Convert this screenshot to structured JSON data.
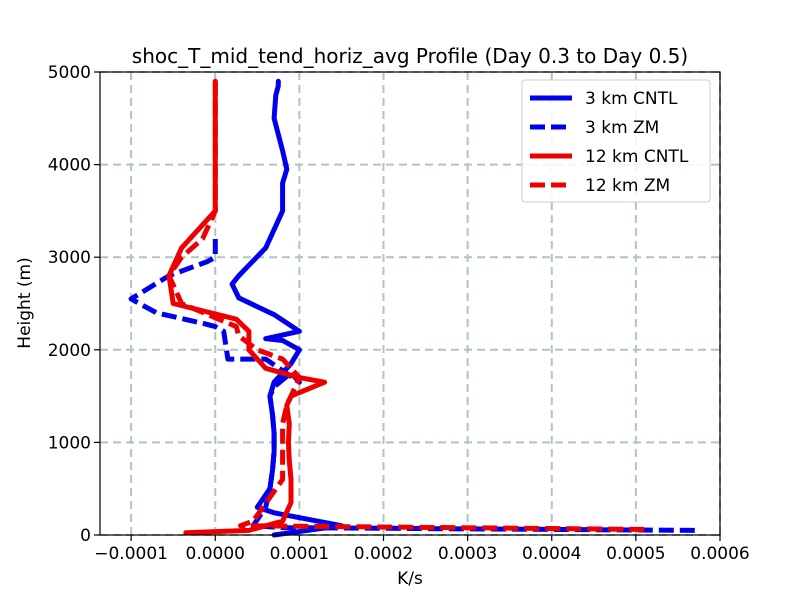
{
  "chart_data": {
    "type": "line",
    "title": "shoc_T_mid_tend_horiz_avg Profile (Day 0.3 to Day 0.5)",
    "xlabel": "K/s",
    "ylabel": "Height (m)",
    "xlim": [
      -0.000137,
      0.0006
    ],
    "ylim": [
      0,
      5000
    ],
    "grid": true,
    "legend_position": "top-right",
    "x_ticks": [
      -0.0001,
      0,
      0.0001,
      0.0002,
      0.0003,
      0.0004,
      0.0005,
      0.0006
    ],
    "x_tick_labels": [
      "−0.0001",
      "0.0000",
      "0.0001",
      "0.0002",
      "0.0003",
      "0.0004",
      "0.0005",
      "0.0006"
    ],
    "y_ticks": [
      0,
      1000,
      2000,
      3000,
      4000,
      5000
    ],
    "y_tick_labels": [
      "0",
      "1000",
      "2000",
      "3000",
      "4000",
      "5000"
    ],
    "series": [
      {
        "name": "3 km CNTL",
        "color": "#0000ee",
        "dash": "solid",
        "x": [
          7e-05,
          0.00015,
          7e-05,
          5e-05,
          6.5e-05,
          6.8e-05,
          7e-05,
          7e-05,
          6.8e-05,
          6.5e-05,
          7e-05,
          9e-05,
          0.0001,
          8e-05,
          6e-05,
          0.0001,
          7e-05,
          2.8e-05,
          2e-05,
          2.8e-05,
          6e-05,
          8e-05,
          8e-05,
          8.5e-05,
          8e-05,
          7e-05,
          7.2e-05,
          7.5e-05,
          7.5e-05
        ],
        "y": [
          0,
          100,
          240,
          300,
          500,
          700,
          900,
          1100,
          1300,
          1500,
          1650,
          1850,
          2000,
          2100,
          2120,
          2200,
          2380,
          2560,
          2710,
          2800,
          3100,
          3500,
          3800,
          3950,
          4150,
          4500,
          4750,
          4850,
          4900
        ]
      },
      {
        "name": "3 km ZM",
        "color": "#0000ee",
        "dash": "dashed",
        "x": [
          0.00057,
          8e-05,
          4.5e-05,
          6e-05,
          6.5e-05,
          6.8e-05,
          7e-05,
          7e-05,
          6.8e-05,
          6.5e-05,
          7e-05,
          9e-05,
          0.0001,
          6e-05,
          1.5e-05,
          1e-05,
          0.0,
          -1.2e-05,
          -7e-05,
          -0.0001,
          -5.5e-05,
          -1e-05,
          0.0,
          0.0
        ],
        "y": [
          50,
          80,
          100,
          300,
          500,
          700,
          900,
          1100,
          1300,
          1500,
          1600,
          1750,
          1650,
          1900,
          1900,
          2200,
          2250,
          2280,
          2400,
          2550,
          2800,
          2950,
          3000,
          3250
        ]
      },
      {
        "name": "12 km CNTL",
        "color": "#ee0000",
        "dash": "solid",
        "x": [
          -3.5e-05,
          4e-05,
          8e-05,
          9e-05,
          9e-05,
          8.8e-05,
          8.7e-05,
          8.8e-05,
          8.5e-05,
          9e-05,
          0.00013,
          0.0001,
          6e-05,
          4e-05,
          4e-05,
          2.5e-05,
          -5e-05,
          -5.5e-05,
          -4e-05,
          -1.5e-05,
          0.0,
          0.0,
          0.0,
          0.0
        ],
        "y": [
          25,
          50,
          150,
          350,
          600,
          800,
          1000,
          1200,
          1400,
          1500,
          1650,
          1700,
          1800,
          2000,
          2200,
          2330,
          2500,
          2800,
          3100,
          3350,
          3500,
          3700,
          4200,
          4900
        ]
      },
      {
        "name": "12 km ZM",
        "color": "#ee0000",
        "dash": "dashed",
        "x": [
          0.00051,
          3e-05,
          4.5e-05,
          8e-05,
          8e-05,
          8e-05,
          8e-05,
          8.5e-05,
          9e-05,
          0.0001,
          8e-05,
          5e-05,
          2.8e-05,
          2.5e-05,
          -4e-05,
          -5.5e-05,
          -4e-05,
          -1.5e-05,
          0.0,
          0.0
        ],
        "y": [
          60,
          100,
          150,
          600,
          800,
          1000,
          1200,
          1400,
          1500,
          1700,
          1900,
          2000,
          2150,
          2250,
          2500,
          2800,
          3000,
          3200,
          3500,
          4900
        ]
      }
    ]
  }
}
